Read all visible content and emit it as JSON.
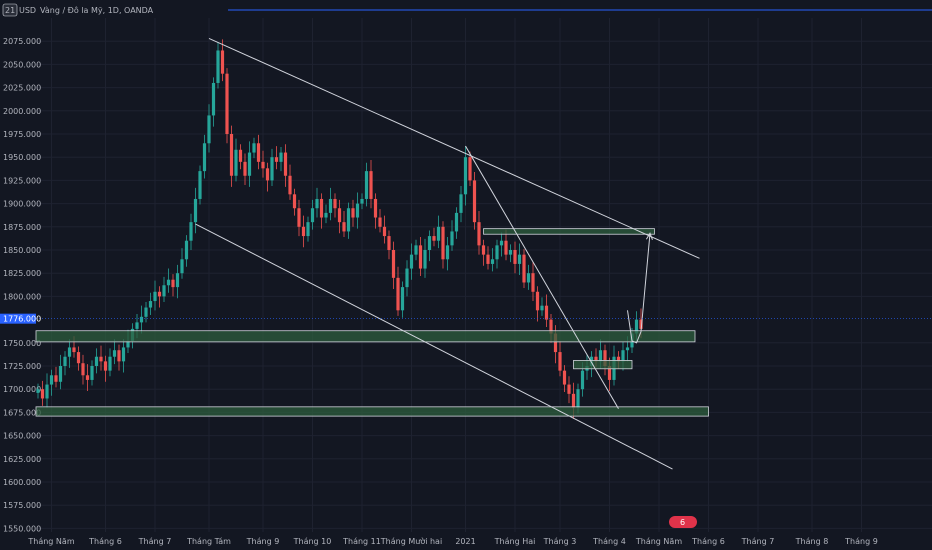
{
  "header": {
    "symbol_badge": "21",
    "ticker": "USD",
    "title": "Vàng / Đô la Mỹ, 1D, OANDA"
  },
  "colors": {
    "background": "#131722",
    "grid": "#1e2230",
    "up": "#26a69a",
    "down": "#ef5350",
    "zone_fill": "#2e5e3e",
    "zone_stroke": "#d1d4dc",
    "line": "#d1d4dc",
    "price_label": "#2962ff",
    "top_line": "#2962ff",
    "watermark": "#e0334a"
  },
  "current_price": {
    "label": "1776.000",
    "value": 1776
  },
  "chart_data": {
    "type": "candlestick",
    "title": "Vàng / Đô la Mỹ, 1D, OANDA",
    "x_axis": {
      "index_range": [
        0,
        180
      ],
      "ticks": [
        {
          "i": 3,
          "label": "Tháng Năm"
        },
        {
          "i": 15,
          "label": "Tháng 6"
        },
        {
          "i": 26,
          "label": "Tháng 7"
        },
        {
          "i": 38,
          "label": "Tháng Tám"
        },
        {
          "i": 50,
          "label": "Tháng 9"
        },
        {
          "i": 61,
          "label": "Tháng 10"
        },
        {
          "i": 72,
          "label": "Tháng 11"
        },
        {
          "i": 83,
          "label": "Tháng Mười hai"
        },
        {
          "i": 95,
          "label": "2021"
        },
        {
          "i": 106,
          "label": "Tháng Hai"
        },
        {
          "i": 116,
          "label": "Tháng 3"
        },
        {
          "i": 127,
          "label": "Tháng 4"
        },
        {
          "i": 138,
          "label": "Tháng Năm"
        },
        {
          "i": 149,
          "label": "Tháng 6"
        },
        {
          "i": 160,
          "label": "Tháng 7"
        },
        {
          "i": 172,
          "label": "Tháng 8"
        },
        {
          "i": 183,
          "label": "Tháng 9"
        }
      ]
    },
    "y_axis": {
      "range": [
        1540,
        2100
      ],
      "ticks": [
        2075,
        2050,
        2025,
        2000,
        1975,
        1950,
        1925,
        1900,
        1875,
        1850,
        1825,
        1800,
        1750,
        1725,
        1700,
        1675,
        1650,
        1625,
        1600,
        1575,
        1550
      ],
      "tick_labels": [
        "2075.000",
        "2050.000",
        "2025.000",
        "2000.000",
        "1975.000",
        "1950.000",
        "1925.000",
        "1900.000",
        "1875.000",
        "1850.000",
        "1825.000",
        "1800.000",
        "1750.000",
        "1725.000",
        "1700.000",
        "1675.000",
        "1650.000",
        "1625.000",
        "1600.000",
        "1575.000",
        "1550.000"
      ]
    },
    "close_series": [
      1700,
      1690,
      1705,
      1715,
      1708,
      1725,
      1735,
      1745,
      1740,
      1728,
      1715,
      1710,
      1725,
      1735,
      1730,
      1720,
      1735,
      1742,
      1730,
      1745,
      1752,
      1765,
      1772,
      1778,
      1788,
      1795,
      1805,
      1800,
      1812,
      1818,
      1810,
      1825,
      1840,
      1860,
      1880,
      1905,
      1935,
      1965,
      1995,
      2030,
      2065,
      2040,
      1975,
      1930,
      1958,
      1945,
      1930,
      1955,
      1965,
      1945,
      1938,
      1925,
      1950,
      1945,
      1955,
      1930,
      1910,
      1895,
      1875,
      1865,
      1880,
      1895,
      1905,
      1885,
      1890,
      1905,
      1895,
      1880,
      1870,
      1895,
      1885,
      1900,
      1905,
      1935,
      1905,
      1885,
      1875,
      1865,
      1850,
      1820,
      1785,
      1810,
      1830,
      1845,
      1855,
      1830,
      1850,
      1865,
      1860,
      1875,
      1840,
      1855,
      1870,
      1890,
      1910,
      1950,
      1925,
      1880,
      1855,
      1845,
      1835,
      1840,
      1855,
      1860,
      1845,
      1850,
      1835,
      1845,
      1815,
      1825,
      1805,
      1785,
      1790,
      1775,
      1760,
      1740,
      1720,
      1705,
      1695,
      1680,
      1700,
      1720,
      1725,
      1735,
      1730,
      1742,
      1725,
      1710,
      1735,
      1730,
      1742,
      1745,
      1760,
      1775,
      1765
    ],
    "zones": [
      {
        "i0": 0,
        "i1": 149,
        "y_low": 1671,
        "y_high": 1681
      },
      {
        "i0": 0,
        "i1": 146,
        "y_low": 1751,
        "y_high": 1763
      },
      {
        "i0": 119,
        "i1": 132,
        "y_low": 1722,
        "y_high": 1731
      },
      {
        "i0": 99,
        "i1": 137,
        "y_low": 1867,
        "y_high": 1873
      }
    ],
    "trendlines": [
      {
        "a": [
          38,
          2078
        ],
        "b": [
          147,
          1841
        ]
      },
      {
        "a": [
          35,
          1878
        ],
        "b": [
          141,
          1614
        ]
      },
      {
        "a": [
          95,
          1962
        ],
        "b": [
          129,
          1679
        ]
      }
    ],
    "projection_path": [
      [
        131,
        1785
      ],
      [
        132,
        1752
      ],
      [
        133,
        1750
      ],
      [
        134,
        1762
      ],
      [
        136,
        1868
      ]
    ]
  },
  "watermark": {
    "label": "6"
  }
}
